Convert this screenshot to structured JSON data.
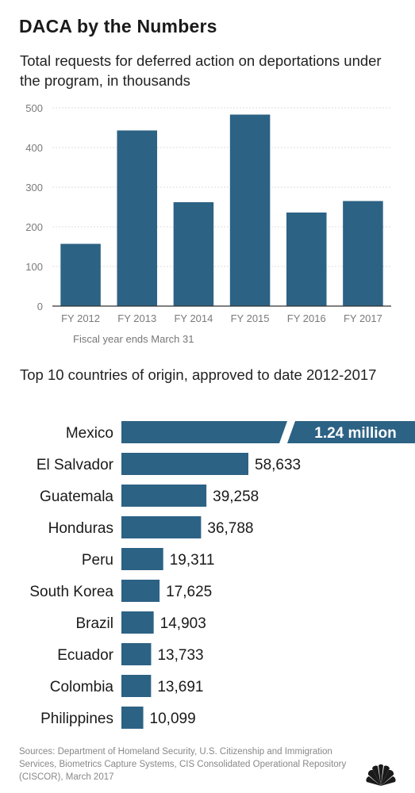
{
  "title": "DACA by the Numbers",
  "colors": {
    "bar": "#2c6284",
    "grid": "#dddddd",
    "axis": "#333333",
    "tick": "#7a7a7a"
  },
  "chart_data": [
    {
      "type": "bar",
      "title": "Total requests for deferred action on deportations under the program, in thousands",
      "categories": [
        "FY 2012",
        "FY 2013",
        "FY 2014",
        "FY 2015",
        "FY 2016",
        "FY 2017"
      ],
      "values": [
        157,
        443,
        262,
        483,
        236,
        265
      ],
      "ylim": [
        0,
        500
      ],
      "yticks": [
        0,
        100,
        200,
        300,
        400,
        500
      ],
      "grid": true,
      "note": "Fiscal year ends March 31"
    },
    {
      "type": "bar",
      "orientation": "horizontal",
      "title": "Top 10 countries of origin, approved to date 2012-2017",
      "categories": [
        "Mexico",
        "El Salvador",
        "Guatemala",
        "Honduras",
        "Peru",
        "South Korea",
        "Brazil",
        "Ecuador",
        "Colombia",
        "Philippines"
      ],
      "values": [
        1240000,
        58633,
        39258,
        36788,
        19311,
        17625,
        14903,
        13733,
        13691,
        10099
      ],
      "labels": [
        "1.24 million",
        "58,633",
        "39,258",
        "36,788",
        "19,311",
        "17,625",
        "14,903",
        "13,733",
        "13,691",
        "10,099"
      ],
      "axis_break": true
    }
  ],
  "sources": "Sources: Department of Homeland Security, U.S. Citizenship and Immigration Services, Biometrics Capture Systems, CIS Consolidated Operational Repository (CISCOR), March 2017"
}
